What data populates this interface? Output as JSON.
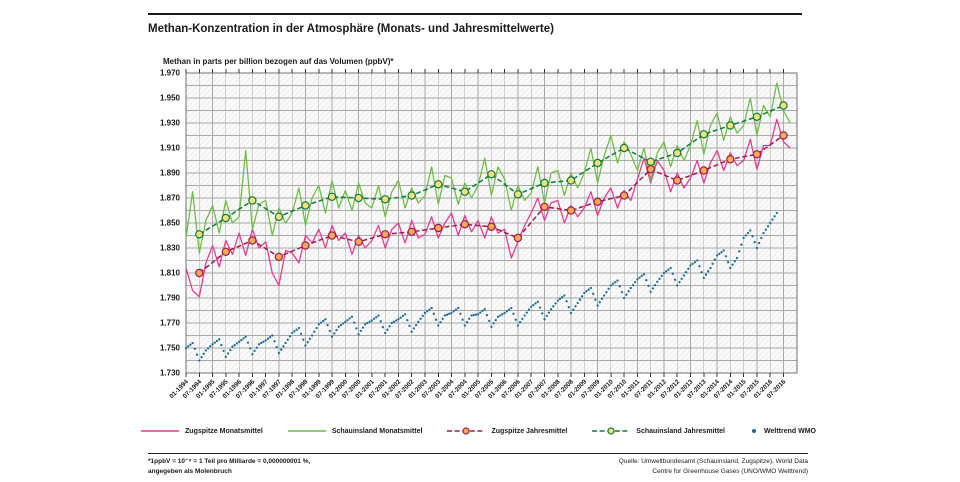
{
  "chart": {
    "title": "Methan-Konzentration in der Atmosphäre (Monats- und Jahresmittelwerte)",
    "subtitle": "Methan in parts per billion bezogen auf das Volumen (ppbV)*"
  },
  "footnote": {
    "line1": "*1ppbV = 10⁻⁹ = 1 Teil pro Milliarde = 0,000000001 %,",
    "line2": "angegeben als Molenbruch"
  },
  "source": {
    "line1": "Quelle: Umweltbundesamt (Schauinsland, Zugspitze), World Data",
    "line2": "Centre for Greenhouse Gases (UNO/WMO Welttrend)"
  },
  "chart_data": {
    "type": "line",
    "title": "Methan-Konzentration in der Atmosphäre (Monats- und Jahresmittelwerte)",
    "subtitle": "Methan in parts per billion bezogen auf das Volumen (ppbV)*",
    "ylabel": "ppbV",
    "ylim": [
      1730,
      1970
    ],
    "grid": true,
    "legend_position": "bottom",
    "y_axis": {
      "min": 1730,
      "max": 1970,
      "tick_step": 20,
      "minor_step": 10,
      "tick_labels": [
        "1.970",
        "1.950",
        "1.930",
        "1.910",
        "1.890",
        "1.870",
        "1.850",
        "1.830",
        "1.810",
        "1.790",
        "1.770",
        "1.750",
        "1.730"
      ]
    },
    "x_axis": {
      "tick_interval_months": 6,
      "tick_labels": [
        "01-1994",
        "07-1994",
        "01-1995",
        "07-1995",
        "01-1996",
        "07-1996",
        "01-1997",
        "07-1997",
        "01-1998",
        "07-1998",
        "01-1999",
        "07-1999",
        "01-2000",
        "07-2000",
        "01-2001",
        "07-2001",
        "01-2002",
        "07-2002",
        "01-2003",
        "07-2003",
        "01-2004",
        "07-2004",
        "01-2005",
        "07-2005",
        "01-2006",
        "07-2006",
        "01-2007",
        "07-2007",
        "01-2008",
        "07-2008",
        "01-2009",
        "07-2009",
        "01-2010",
        "07-2010",
        "01-2011",
        "07-2011",
        "01-2012",
        "07-2012",
        "01-2013",
        "07-2013",
        "01-2014",
        "07-2014",
        "01-2015",
        "07-2015",
        "01-2016",
        "07-2016"
      ]
    },
    "series": [
      {
        "name": "Zugspitze Monatsmittel",
        "kind": "monthly-line",
        "color": "#e8368f",
        "month_start": 0,
        "month_step": 3,
        "values": [
          1814,
          1796,
          1791,
          1818,
          1832,
          1815,
          1836,
          1825,
          1842,
          1824,
          1845,
          1830,
          1835,
          1810,
          1800,
          1828,
          1826,
          1818,
          1840,
          1834,
          1845,
          1830,
          1848,
          1836,
          1842,
          1825,
          1840,
          1830,
          1836,
          1848,
          1830,
          1845,
          1850,
          1834,
          1852,
          1838,
          1841,
          1855,
          1838,
          1850,
          1858,
          1840,
          1856,
          1843,
          1852,
          1838,
          1855,
          1842,
          1845,
          1822,
          1835,
          1848,
          1858,
          1870,
          1852,
          1866,
          1868,
          1850,
          1864,
          1855,
          1862,
          1875,
          1856,
          1870,
          1878,
          1862,
          1876,
          1868,
          1885,
          1902,
          1882,
          1900,
          1892,
          1875,
          1890,
          1878,
          1886,
          1900,
          1882,
          1898,
          1908,
          1892,
          1906,
          1896,
          1900,
          1917,
          1893,
          1912,
          1912,
          1933,
          1915,
          1910
        ]
      },
      {
        "name": "Schauinsland Monatsmittel",
        "kind": "monthly-line",
        "color": "#6cbb42",
        "month_start": 0,
        "month_step": 3,
        "values": [
          1838,
          1875,
          1826,
          1852,
          1864,
          1842,
          1868,
          1850,
          1855,
          1908,
          1845,
          1865,
          1868,
          1840,
          1862,
          1850,
          1858,
          1878,
          1848,
          1870,
          1880,
          1858,
          1884,
          1862,
          1876,
          1860,
          1882,
          1866,
          1862,
          1880,
          1855,
          1875,
          1884,
          1862,
          1878,
          1866,
          1872,
          1895,
          1865,
          1888,
          1886,
          1865,
          1882,
          1870,
          1880,
          1902,
          1872,
          1895,
          1885,
          1860,
          1880,
          1868,
          1874,
          1895,
          1866,
          1890,
          1892,
          1872,
          1890,
          1878,
          1890,
          1910,
          1882,
          1904,
          1920,
          1898,
          1915,
          1905,
          1892,
          1910,
          1884,
          1906,
          1915,
          1895,
          1912,
          1900,
          1912,
          1932,
          1905,
          1928,
          1938,
          1916,
          1935,
          1922,
          1928,
          1950,
          1920,
          1944,
          1935,
          1962,
          1940,
          1930
        ]
      },
      {
        "name": "Zugspitze Jahresmittel",
        "kind": "annual-dashed",
        "color": "#9e1b52",
        "marker_fill": "#f7ab50",
        "years": [
          1994,
          1995,
          1996,
          1997,
          1998,
          1999,
          2000,
          2001,
          2002,
          2003,
          2004,
          2005,
          2006,
          2007,
          2008,
          2009,
          2010,
          2011,
          2012,
          2013,
          2014,
          2015,
          2016
        ],
        "values": [
          1810,
          1827,
          1836,
          1823,
          1832,
          1840,
          1835,
          1841,
          1843,
          1846,
          1849,
          1847,
          1838,
          1863,
          1860,
          1867,
          1872,
          1893,
          1884,
          1892,
          1901,
          1905,
          1920
        ]
      },
      {
        "name": "Schauinsland Jahresmittel",
        "kind": "annual-dashed",
        "color": "#0f7c3a",
        "marker_fill": "#fadf7e",
        "years": [
          1994,
          1995,
          1996,
          1997,
          1998,
          1999,
          2000,
          2001,
          2002,
          2003,
          2004,
          2005,
          2006,
          2007,
          2008,
          2009,
          2010,
          2011,
          2012,
          2013,
          2014,
          2015,
          2016
        ],
        "values": [
          1841,
          1854,
          1868,
          1855,
          1864,
          1871,
          1870,
          1869,
          1872,
          1881,
          1875,
          1889,
          1873,
          1882,
          1884,
          1898,
          1910,
          1899,
          1906,
          1921,
          1928,
          1935,
          1944
        ]
      },
      {
        "name": "Welttrend WMO",
        "kind": "dots",
        "color": "#1e6b96",
        "month_start": 0,
        "month_step": 3,
        "values": [
          1750,
          1754,
          1740,
          1748,
          1753,
          1757,
          1743,
          1751,
          1755,
          1759,
          1745,
          1753,
          1756,
          1760,
          1746,
          1754,
          1762,
          1766,
          1752,
          1760,
          1769,
          1773,
          1759,
          1767,
          1771,
          1775,
          1761,
          1769,
          1772,
          1776,
          1762,
          1770,
          1773,
          1777,
          1763,
          1771,
          1778,
          1782,
          1768,
          1776,
          1778,
          1782,
          1768,
          1776,
          1777,
          1781,
          1767,
          1775,
          1778,
          1782,
          1768,
          1776,
          1783,
          1787,
          1773,
          1781,
          1788,
          1792,
          1778,
          1786,
          1794,
          1798,
          1784,
          1792,
          1800,
          1804,
          1790,
          1798,
          1805,
          1809,
          1795,
          1803,
          1810,
          1814,
          1800,
          1808,
          1816,
          1820,
          1806,
          1814,
          1824,
          1828,
          1814,
          1822,
          1838,
          1844,
          1830,
          1842,
          1850,
          1858
        ]
      }
    ],
    "colors": {
      "grid": "#a8a8a8",
      "plot_border": "#707070",
      "hatch": "#e1e1e1",
      "plot_bg": "#fafafa",
      "text": "#1a1a1a"
    }
  }
}
